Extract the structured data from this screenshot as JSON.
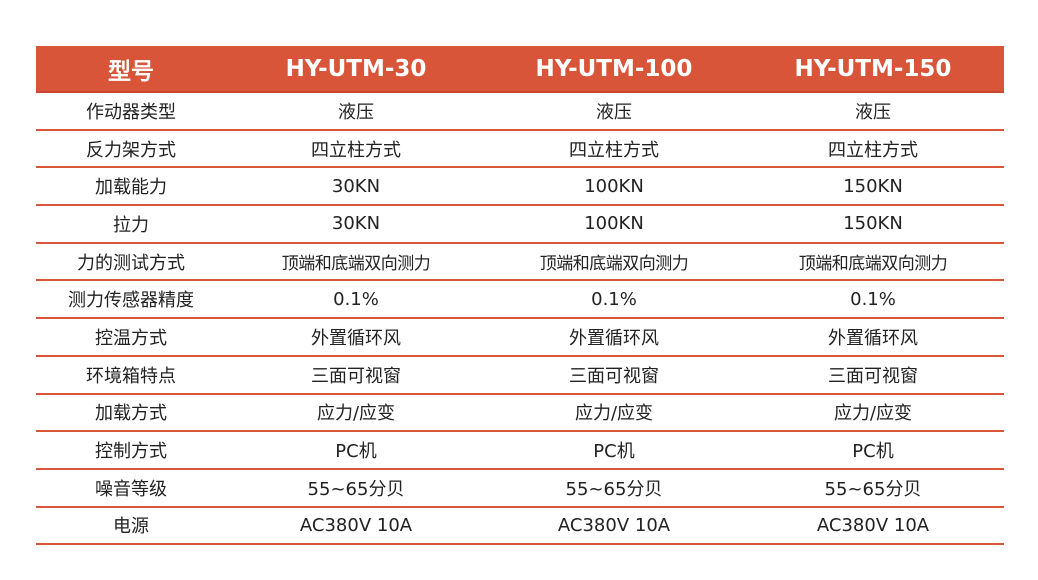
{
  "header": {
    "label": "型号",
    "models": [
      "HY-UTM-30",
      "HY-UTM-100",
      "HY-UTM-150"
    ]
  },
  "rows": [
    {
      "label": "作动器类型",
      "values": [
        "液压",
        "液压",
        "液压"
      ]
    },
    {
      "label": "反力架方式",
      "values": [
        "四立柱方式",
        "四立柱方式",
        "四立柱方式"
      ]
    },
    {
      "label": "加载能力",
      "values": [
        "30KN",
        "100KN",
        "150KN"
      ]
    },
    {
      "label": "拉力",
      "values": [
        "30KN",
        "100KN",
        "150KN"
      ]
    },
    {
      "label": "力的测试方式",
      "values": [
        "顶端和底端双向测力",
        "顶端和底端双向测力",
        "顶端和底端双向测力"
      ]
    },
    {
      "label": "测力传感器精度",
      "values": [
        "0.1%",
        "0.1%",
        "0.1%"
      ]
    },
    {
      "label": "控温方式",
      "values": [
        "外置循环风",
        "外置循环风",
        "外置循环风"
      ]
    },
    {
      "label": "环境箱特点",
      "values": [
        "三面可视窗",
        "三面可视窗",
        "三面可视窗"
      ]
    },
    {
      "label": "加载方式",
      "values": [
        "应力/应变",
        "应力/应变",
        "应力/应变"
      ]
    },
    {
      "label": "控制方式",
      "values": [
        "PC机",
        "PC机",
        "PC机"
      ]
    },
    {
      "label": "噪音等级",
      "values": [
        "55~65分贝",
        "55~65分贝",
        "55~65分贝"
      ]
    },
    {
      "label": "电源",
      "values": [
        "AC380V 10A",
        "AC380V 10A",
        "AC380V 10A"
      ]
    }
  ],
  "colors": {
    "header_bg": "#d8553a",
    "header_text": "#ffffff",
    "divider": "#d8553a",
    "body_text": "#222222"
  }
}
